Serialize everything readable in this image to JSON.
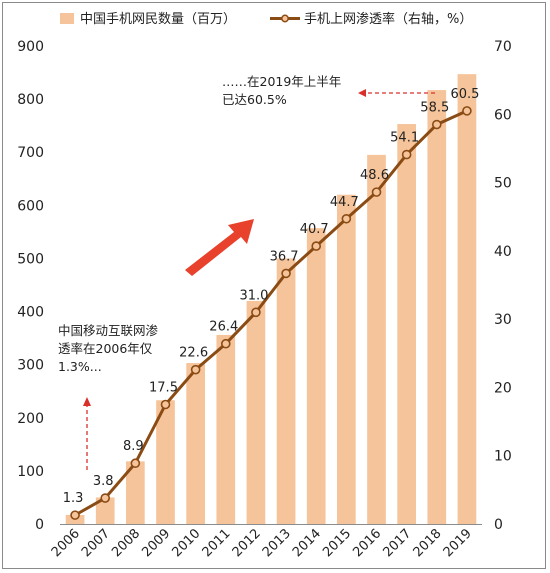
{
  "chart_data": {
    "type": "bar",
    "categories": [
      "2006",
      "2007",
      "2008",
      "2009",
      "2010",
      "2011",
      "2012",
      "2013",
      "2014",
      "2015",
      "2016",
      "2017",
      "2018",
      "2019"
    ],
    "series": [
      {
        "name": "中国手机网民数量（百万）",
        "type": "bar",
        "axis": "left",
        "color": "#f6c49a",
        "values": [
          17,
          50,
          118,
          233,
          303,
          356,
          420,
          500,
          557,
          620,
          695,
          753,
          817,
          847
        ]
      },
      {
        "name": "手机上网渗透率（右轴，%）",
        "type": "line",
        "axis": "right",
        "color": "#8a4b14",
        "values": [
          1.3,
          3.8,
          8.9,
          17.5,
          22.6,
          26.4,
          31.0,
          36.7,
          40.7,
          44.7,
          48.6,
          54.1,
          58.5,
          60.5
        ],
        "labels": [
          "1.3",
          "3.8",
          "8.9",
          "17.5",
          "22.6",
          "26.4",
          "31.0",
          "36.7",
          "40.7",
          "44.7",
          "48.6",
          "54.1",
          "58.5",
          "60.5"
        ]
      }
    ],
    "y_left": {
      "ylim": [
        0,
        900
      ],
      "ticks": [
        "0",
        "100",
        "200",
        "300",
        "400",
        "500",
        "600",
        "700",
        "800",
        "900"
      ]
    },
    "y_right": {
      "ylim": [
        0,
        70
      ],
      "ticks": [
        "0",
        "10",
        "20",
        "30",
        "40",
        "50",
        "60",
        "70"
      ]
    },
    "legend_position": "top",
    "grid": false,
    "annotations": [
      {
        "lines": [
          "……在2019年上半年",
          "已达60.5%"
        ],
        "arrow": "right"
      },
      {
        "lines": [
          "中国移动互联网渗",
          "透率在2006年仅",
          "1.3%..."
        ],
        "arrow": "up"
      }
    ],
    "trend_arrow_color": "#e8412c",
    "annotation_arrow_color": "#d9302c"
  }
}
